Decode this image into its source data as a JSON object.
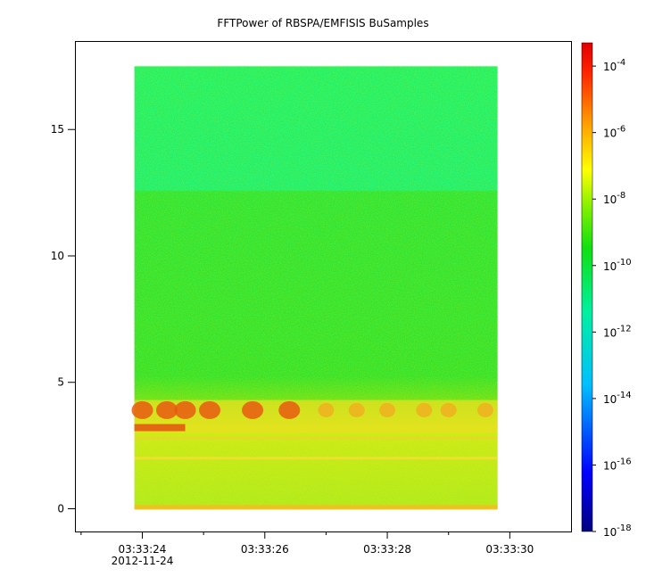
{
  "chart_data": {
    "type": "heatmap",
    "title": "FFTPower of RBSPA/EMFISIS  BuSamples",
    "xlabel": "",
    "ylabel": "",
    "x_ticks": [
      {
        "label": "03:33:24",
        "sublabel": "2012-11-24",
        "t": 24
      },
      {
        "label": "03:33:26",
        "sublabel": "",
        "t": 26
      },
      {
        "label": "03:33:28",
        "sublabel": "",
        "t": 28
      },
      {
        "label": "03:33:30",
        "sublabel": "",
        "t": 30
      }
    ],
    "x_minor_ticks": [
      23,
      25,
      27,
      29
    ],
    "xlim": [
      22.9,
      31.0
    ],
    "y_ticks": [
      0,
      5,
      10,
      15
    ],
    "ylim": [
      -0.9,
      18.5
    ],
    "data_extent": {
      "t_start": 23.87,
      "t_end": 29.8,
      "f_min": 0.0,
      "f_max": 17.5
    },
    "colorbar": {
      "scale": "log",
      "range_exp": [
        -18,
        -3.3
      ],
      "tick_exps": [
        -4,
        -6,
        -8,
        -10,
        -12,
        -14,
        -16,
        -18
      ],
      "tick_labels": [
        {
          "base": "10",
          "exp": "-4"
        },
        {
          "base": "10",
          "exp": "-6"
        },
        {
          "base": "10",
          "exp": "-8"
        },
        {
          "base": "10",
          "exp": "-10"
        },
        {
          "base": "10",
          "exp": "-12"
        },
        {
          "base": "10",
          "exp": "-14"
        },
        {
          "base": "10",
          "exp": "-16"
        },
        {
          "base": "10",
          "exp": "-18"
        }
      ]
    },
    "bands": [
      {
        "f_range": [
          12.2,
          17.5
        ],
        "log_power": -11.2
      },
      {
        "f_range": [
          4.3,
          12.2
        ],
        "log_power": -10.2
      },
      {
        "f_range": [
          3.0,
          4.3
        ],
        "log_power": -7.0,
        "note_visible": false
      },
      {
        "f_range": [
          0.0,
          3.0
        ],
        "log_power": -9.0
      }
    ],
    "colors": {
      "background": "#ffffff",
      "axis": "#000000"
    }
  }
}
